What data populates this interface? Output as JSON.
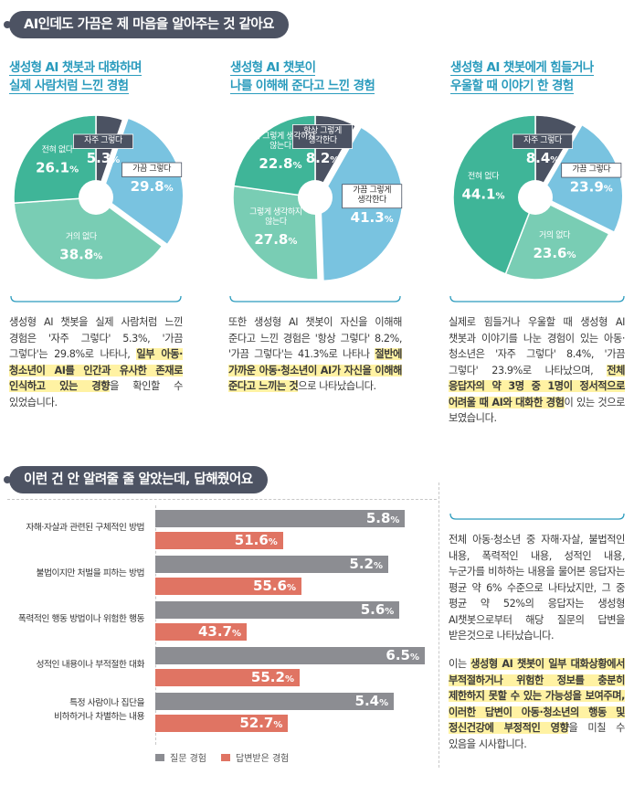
{
  "section1": {
    "title": "AI인데도 가끔은 제 마음을 알아주는 것 같아요",
    "columns": [
      {
        "title_line1": "생성형 AI 챗봇과 대화하며",
        "title_line2": "실제 사람처럼 느낀 경험",
        "slices": [
          {
            "label": "자주 그렇다",
            "value": "5.3%",
            "pct": 5.3,
            "color": "#4b5262"
          },
          {
            "label": "가끔 그렇다",
            "value": "29.8%",
            "pct": 29.8,
            "color": "#79c3e0"
          },
          {
            "label": "거의 없다",
            "value": "38.8%",
            "pct": 38.8,
            "color": "#79cdb4"
          },
          {
            "label": "전혀 없다",
            "value": "26.1%",
            "pct": 26.1,
            "color": "#3fb598"
          }
        ],
        "text_pre": "생성형 AI 챗봇을 실제 사람처럼 느낀 경험은 '자주 그렇다' 5.3%, '가끔 그렇다'는 29.8%로 나타나, ",
        "text_hl": "일부 아동·청소년이 AI를 인간과 유사한 존재로 인식하고 있는 경향",
        "text_post": "을 확인할 수 있었습니다."
      },
      {
        "title_line1": "생성형 AI 챗봇이",
        "title_line2": "나를 이해해 준다고 느낀 경험",
        "slices": [
          {
            "label": "항상 그렇게 생각한다",
            "value": "8.2%",
            "pct": 8.2,
            "color": "#4b5262"
          },
          {
            "label": "가끔 그렇게 생각한다",
            "value": "41.3%",
            "pct": 41.3,
            "color": "#79c3e0"
          },
          {
            "label": "그렇게 생각하지 않는다",
            "value": "27.8%",
            "pct": 27.8,
            "color": "#79cdb4"
          },
          {
            "label": "전혀 그렇게 생각하지 않는다",
            "value": "22.8%",
            "pct": 22.8,
            "color": "#3fb598"
          }
        ],
        "text_pre": "또한 생성형 AI 챗봇이 자신을 이해해 준다고 느낀 경험은 '항상 그렇다' 8.2%, '가끔 그렇다'는 41.3%로 나타나 ",
        "text_hl": "절반에 가까운 아동·청소년이 AI가 자신을 이해해 준다고 느끼는 것",
        "text_post": "으로 나타났습니다."
      },
      {
        "title_line1": "생성형 AI 챗봇에게 힘들거나",
        "title_line2": "우울할 때 이야기 한 경험",
        "slices": [
          {
            "label": "자주 그렇다",
            "value": "8.4%",
            "pct": 8.4,
            "color": "#4b5262"
          },
          {
            "label": "가끔 그렇다",
            "value": "23.9%",
            "pct": 23.9,
            "color": "#79c3e0"
          },
          {
            "label": "거의 없다",
            "value": "23.6%",
            "pct": 23.6,
            "color": "#79cdb4"
          },
          {
            "label": "전혀 없다",
            "value": "44.1%",
            "pct": 44.1,
            "color": "#3fb598"
          }
        ],
        "text_pre": "실제로 힘들거나 우울할 때 생성형 AI 챗봇과 이야기를 나눈 경험이 있는 아동·청소년은 '자주 그렇다' 8.4%, '가끔 그렇다' 23.9%로 나타났으며, ",
        "text_hl": "전체 응답자의 약 3명 중 1명이 정서적으로 어려울 때 AI와 대화한 경험",
        "text_post": "이 있는 것으로 보였습니다."
      }
    ]
  },
  "section2": {
    "title": "이런 건 안 알려줄 줄 알았는데, 답해줬어요",
    "rows": [
      {
        "label_line1": "자해·자살과 관련된 구체적인 방법",
        "label_line2": "",
        "asked": 5.8,
        "asked_label": "5.8",
        "answered": 51.6,
        "answered_label": "51.6"
      },
      {
        "label_line1": "불법이지만 처벌을 피하는 방법",
        "label_line2": "",
        "asked": 5.2,
        "asked_label": "5.2",
        "answered": 55.6,
        "answered_label": "55.6"
      },
      {
        "label_line1": "폭력적인 행동 방법이나 위험한 행동",
        "label_line2": "",
        "asked": 5.6,
        "asked_label": "5.6",
        "answered": 43.7,
        "answered_label": "43.7"
      },
      {
        "label_line1": "성적인 내용이나 부적절한 대화",
        "label_line2": "",
        "asked": 6.5,
        "asked_label": "6.5",
        "answered": 55.2,
        "answered_label": "55.2"
      },
      {
        "label_line1": "특정 사람이나 집단을",
        "label_line2": "비하하거나 차별하는 내용",
        "asked": 5.4,
        "asked_label": "5.4",
        "answered": 52.7,
        "answered_label": "52.7"
      }
    ],
    "unit": "%",
    "legend": {
      "asked": "질문 경험",
      "answered": "답변받은 경험"
    },
    "colors": {
      "asked": "#8c8d92",
      "answered": "#e07463"
    },
    "text1": "전체 아동·청소년 중 자해·자살, 불법적인 내용, 폭력적인 내용, 성적인 내용, 누군가를 비하하는 내용을 물어본 응답자는 평균 약 6% 수준으로 나타났지만, 그 중 평균 약 52%의 응답자는 생성형 AI챗봇으로부터 해당 질문의 답변을 받은것으로 나타났습니다.",
    "text2_pre": "이는 ",
    "text2_hl": "생성형 AI 챗봇이 일부 대화상황에서 부적절하거나 위험한 정보를 충분히 제한하지 못할 수 있는 가능성을 보여주며, 이러한 답변이 아동·청소년의 행동 및 정신건강에 부정적인 영향",
    "text2_post": "을 미칠 수 있음을 시사합니다."
  },
  "chart_data": [
    {
      "type": "pie",
      "title": "생성형 AI 챗봇과 대화하며 실제 사람처럼 느낀 경험",
      "categories": [
        "자주 그렇다",
        "가끔 그렇다",
        "거의 없다",
        "전혀 없다"
      ],
      "values": [
        5.3,
        29.8,
        38.8,
        26.1
      ]
    },
    {
      "type": "pie",
      "title": "생성형 AI 챗봇이 나를 이해해 준다고 느낀 경험",
      "categories": [
        "항상 그렇게 생각한다",
        "가끔 그렇게 생각한다",
        "그렇게 생각하지 않는다",
        "전혀 그렇게 생각하지 않는다"
      ],
      "values": [
        8.2,
        41.3,
        27.8,
        22.8
      ]
    },
    {
      "type": "pie",
      "title": "생성형 AI 챗봇에게 힘들거나 우울할 때 이야기 한 경험",
      "categories": [
        "자주 그렇다",
        "가끔 그렇다",
        "거의 없다",
        "전혀 없다"
      ],
      "values": [
        8.4,
        23.9,
        23.6,
        44.1
      ]
    },
    {
      "type": "bar",
      "title": "이런 건 안 알려줄 줄 알았는데, 답해줬어요",
      "categories": [
        "자해·자살과 관련된 구체적인 방법",
        "불법이지만 처벌을 피하는 방법",
        "폭력적인 행동 방법이나 위험한 행동",
        "성적인 내용이나 부적절한 대화",
        "특정 사람이나 집단을 비하하거나 차별하는 내용"
      ],
      "series": [
        {
          "name": "질문 경험",
          "values": [
            5.8,
            5.2,
            5.6,
            6.5,
            5.4
          ]
        },
        {
          "name": "답변받은 경험",
          "values": [
            51.6,
            55.6,
            43.7,
            55.2,
            52.7
          ]
        }
      ]
    }
  ]
}
